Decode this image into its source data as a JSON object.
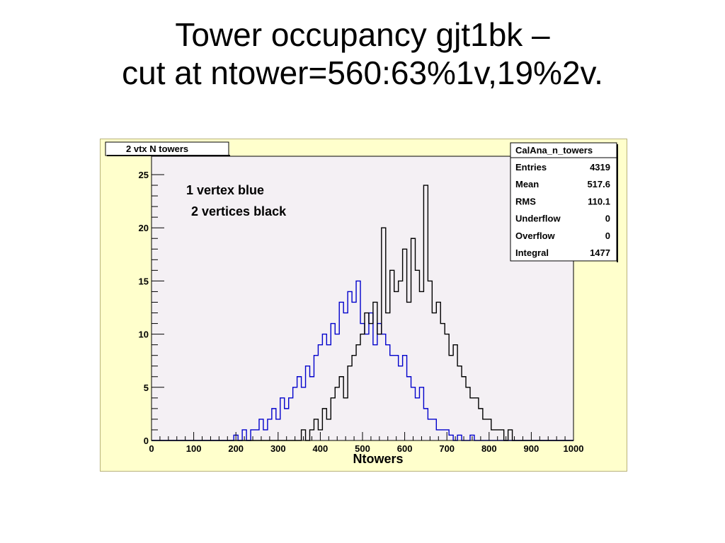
{
  "slide": {
    "title_line1": "Tower occupancy gjt1bk –",
    "title_line2": "cut at ntower=560:63%1v,19%2v."
  },
  "colors": {
    "frame_fill": "#ffffcc",
    "pad_fill": "#f4f0f4",
    "series_1v": "#0000cc",
    "series_2v": "#000000"
  },
  "chart_data": {
    "type": "line",
    "title": "2 vtx N towers",
    "xlabel": "Ntowers",
    "ylabel": "",
    "xlim": [
      0,
      1000
    ],
    "ylim": [
      0,
      25
    ],
    "x_ticks": [
      "0",
      "100",
      "200",
      "300",
      "400",
      "500",
      "600",
      "700",
      "800",
      "900",
      "1000"
    ],
    "y_ticks": [
      "0",
      "5",
      "10",
      "15",
      "20",
      "25"
    ],
    "grid": false,
    "annotations": [
      "1 vertex blue",
      "2 vertices black"
    ],
    "stats_box": {
      "title": "CalAna_n_towers",
      "placement": "top-right",
      "rows": [
        {
          "label": "Entries",
          "value": "4319"
        },
        {
          "label": "Mean",
          "value": "517.6"
        },
        {
          "label": "RMS",
          "value": "110.1"
        },
        {
          "label": "Underflow",
          "value": "0"
        },
        {
          "label": "Overflow",
          "value": "0"
        },
        {
          "label": "Integral",
          "value": "1477"
        }
      ]
    },
    "series": [
      {
        "color": "#0000cc",
        "x": [
          0,
          180,
          195,
          205,
          215,
          225,
          235,
          245,
          255,
          265,
          275,
          285,
          295,
          305,
          315,
          325,
          335,
          345,
          355,
          365,
          375,
          385,
          395,
          405,
          415,
          425,
          435,
          445,
          455,
          465,
          475,
          485,
          495,
          505,
          515,
          525,
          535,
          545,
          555,
          565,
          575,
          585,
          595,
          605,
          615,
          625,
          635,
          645,
          655,
          665,
          675,
          685,
          695,
          705,
          715,
          725,
          735,
          745,
          755,
          765,
          775,
          785,
          795,
          1000
        ],
        "y": [
          0,
          0,
          0.5,
          0,
          1,
          0,
          1,
          1,
          2,
          1,
          2,
          3,
          2,
          4,
          3,
          4,
          5,
          6,
          5,
          7,
          6,
          8,
          9,
          10,
          9,
          11,
          10,
          13,
          12,
          14,
          13,
          15,
          11,
          10,
          12,
          9,
          11,
          10,
          9,
          8,
          8,
          7,
          8,
          6,
          5,
          4,
          5,
          3,
          2,
          2,
          1,
          1,
          1,
          0.5,
          0,
          0.5,
          0,
          0,
          0.5,
          0,
          0,
          0,
          0,
          0
        ]
      },
      {
        "color": "#000000",
        "x": [
          0,
          340,
          355,
          365,
          375,
          385,
          395,
          405,
          415,
          425,
          435,
          445,
          455,
          465,
          475,
          485,
          495,
          505,
          515,
          525,
          535,
          545,
          555,
          565,
          575,
          585,
          595,
          605,
          615,
          625,
          635,
          645,
          655,
          665,
          675,
          685,
          695,
          705,
          715,
          725,
          735,
          745,
          755,
          765,
          775,
          785,
          795,
          805,
          815,
          825,
          835,
          845,
          855,
          865,
          875,
          1000
        ],
        "y": [
          0,
          0,
          1,
          0,
          1,
          2,
          1,
          3,
          2,
          4,
          5,
          6,
          4,
          7,
          8,
          9,
          10,
          12,
          11,
          13,
          10,
          20,
          12,
          16,
          14,
          15,
          18,
          13,
          19,
          16,
          14,
          24,
          15,
          12,
          13,
          11,
          10,
          8,
          9,
          7,
          6,
          5,
          4,
          4,
          3,
          2,
          2,
          1,
          1,
          1,
          0,
          1,
          0,
          0,
          0,
          0
        ]
      }
    ]
  }
}
